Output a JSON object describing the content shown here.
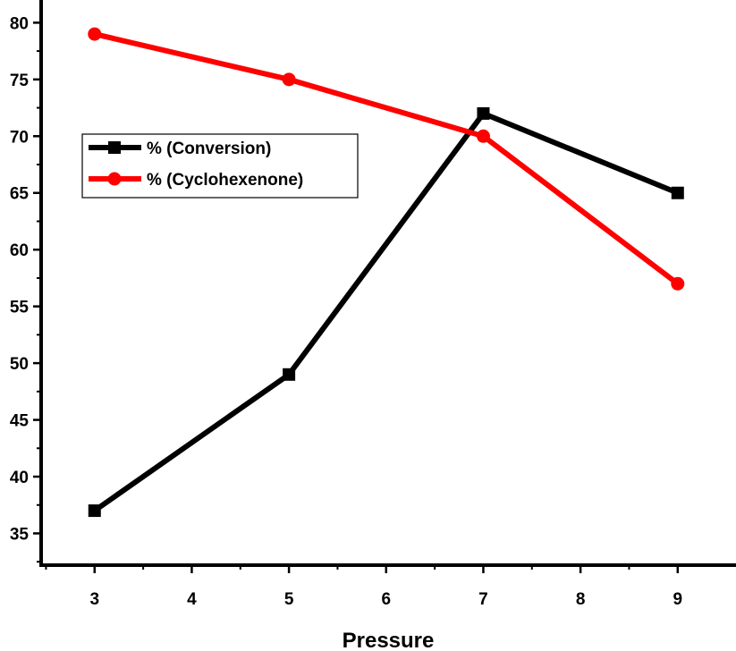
{
  "chart_data": {
    "type": "line",
    "title": "",
    "xlabel": "Pressure",
    "ylabel": "",
    "x": [
      3,
      5,
      7,
      9
    ],
    "xlim": [
      2.45,
      9.6
    ],
    "ylim": [
      32.2,
      82
    ],
    "xticks": [
      3,
      4,
      5,
      6,
      7,
      8,
      9
    ],
    "xtick_labels": [
      "3",
      "4",
      "5",
      "6",
      "7",
      "8",
      "9"
    ],
    "yticks": [
      35,
      40,
      45,
      50,
      55,
      60,
      65,
      70,
      75,
      80
    ],
    "ytick_labels": [
      "35",
      "40",
      "45",
      "50",
      "55",
      "60",
      "65",
      "70",
      "75",
      "80"
    ],
    "grid": false,
    "legend_position": "upper-left",
    "series": [
      {
        "name": "% (Conversion)",
        "values": [
          37,
          49,
          72,
          65
        ],
        "color": "#000000",
        "marker": "square"
      },
      {
        "name": "% (Cyclohexenone)",
        "values": [
          79,
          75,
          70,
          57
        ],
        "color": "#ff0000",
        "marker": "circle"
      }
    ]
  }
}
